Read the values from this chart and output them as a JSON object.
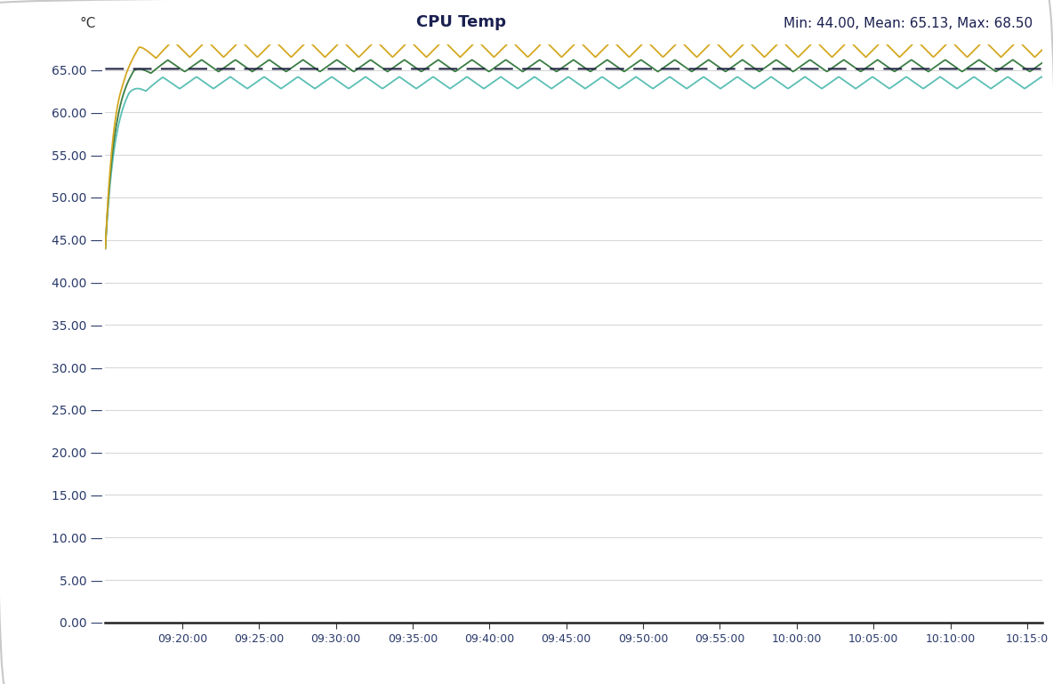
{
  "title": "CPU Temp",
  "ylabel": "°C",
  "stats_text": "Min: 44.00, Mean: 65.13, Max: 68.50",
  "ylim": [
    0,
    68
  ],
  "xlim_minutes": [
    0,
    61
  ],
  "x_tick_labels": [
    "09:20:00",
    "09:25:00",
    "09:30:00",
    "09:35:00",
    "09:40:00",
    "09:45:00",
    "09:50:00",
    "09:55:00",
    "10:00:00",
    "10:05:00",
    "10:10:00",
    "10:15:0"
  ],
  "x_tick_positions": [
    5,
    10,
    15,
    20,
    25,
    30,
    35,
    40,
    45,
    50,
    55,
    60
  ],
  "y_ticks": [
    0,
    5,
    10,
    15,
    20,
    25,
    30,
    35,
    40,
    45,
    50,
    55,
    60,
    65
  ],
  "mean_value": 65.13,
  "min_value": 44.0,
  "max_value": 68.5,
  "color_yellow": "#d4a820",
  "color_green": "#3a7d44",
  "color_teal": "#5bbfb5",
  "color_dashed": "#222244",
  "background_color": "#ffffff",
  "grid_color": "#d8d8d8",
  "border_color": "#c8c8c8",
  "tick_label_color": "#2a3a6a",
  "title_color": "#1a2050"
}
